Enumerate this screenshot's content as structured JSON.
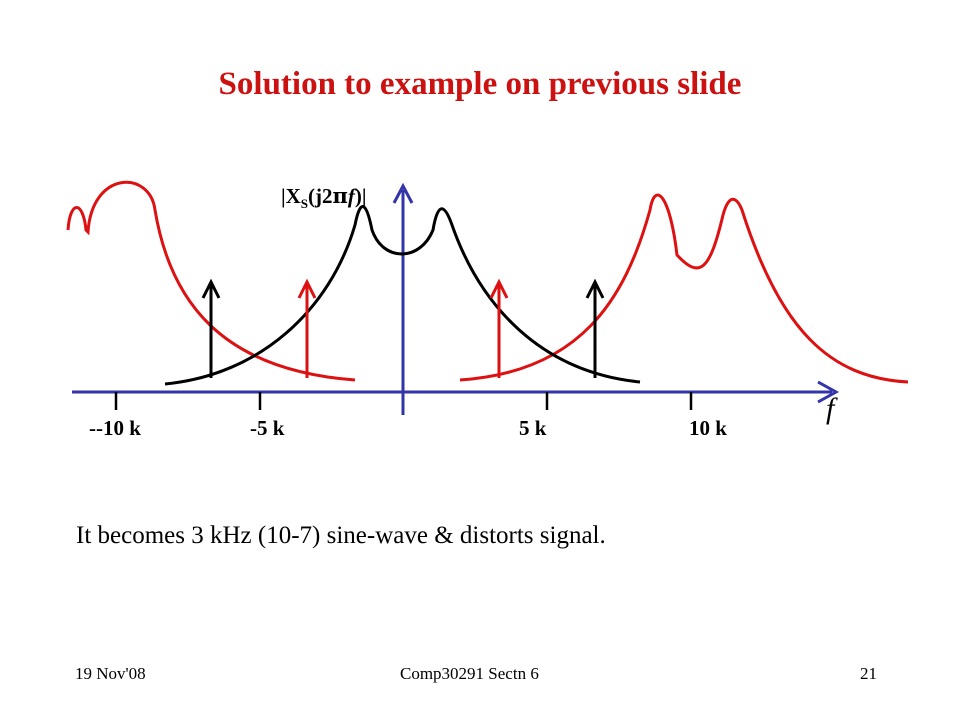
{
  "slide": {
    "title": "Solution to example on previous slide",
    "caption": "It becomes 3 kHz (10-7) sine-wave & distorts signal.",
    "footer": {
      "date": "19 Nov'08",
      "course": "Comp30291 Sectn 6",
      "page": "21"
    }
  },
  "diagram": {
    "y_axis_label": {
      "prefix": "|X",
      "subscript": "S",
      "open": "(j2",
      "pi": "π",
      "f": "f",
      "close": ")|"
    },
    "x_axis_label": "f",
    "ticks": [
      {
        "label": "--10 k",
        "value": -10
      },
      {
        "label": "-5 k",
        "value": -5
      },
      {
        "label": "5 k",
        "value": 5
      },
      {
        "label": "10 k",
        "value": 10
      }
    ],
    "colors": {
      "axis": "#3333aa",
      "baseband": "#000000",
      "image": "#dd1111",
      "title": "#cc1111"
    }
  }
}
